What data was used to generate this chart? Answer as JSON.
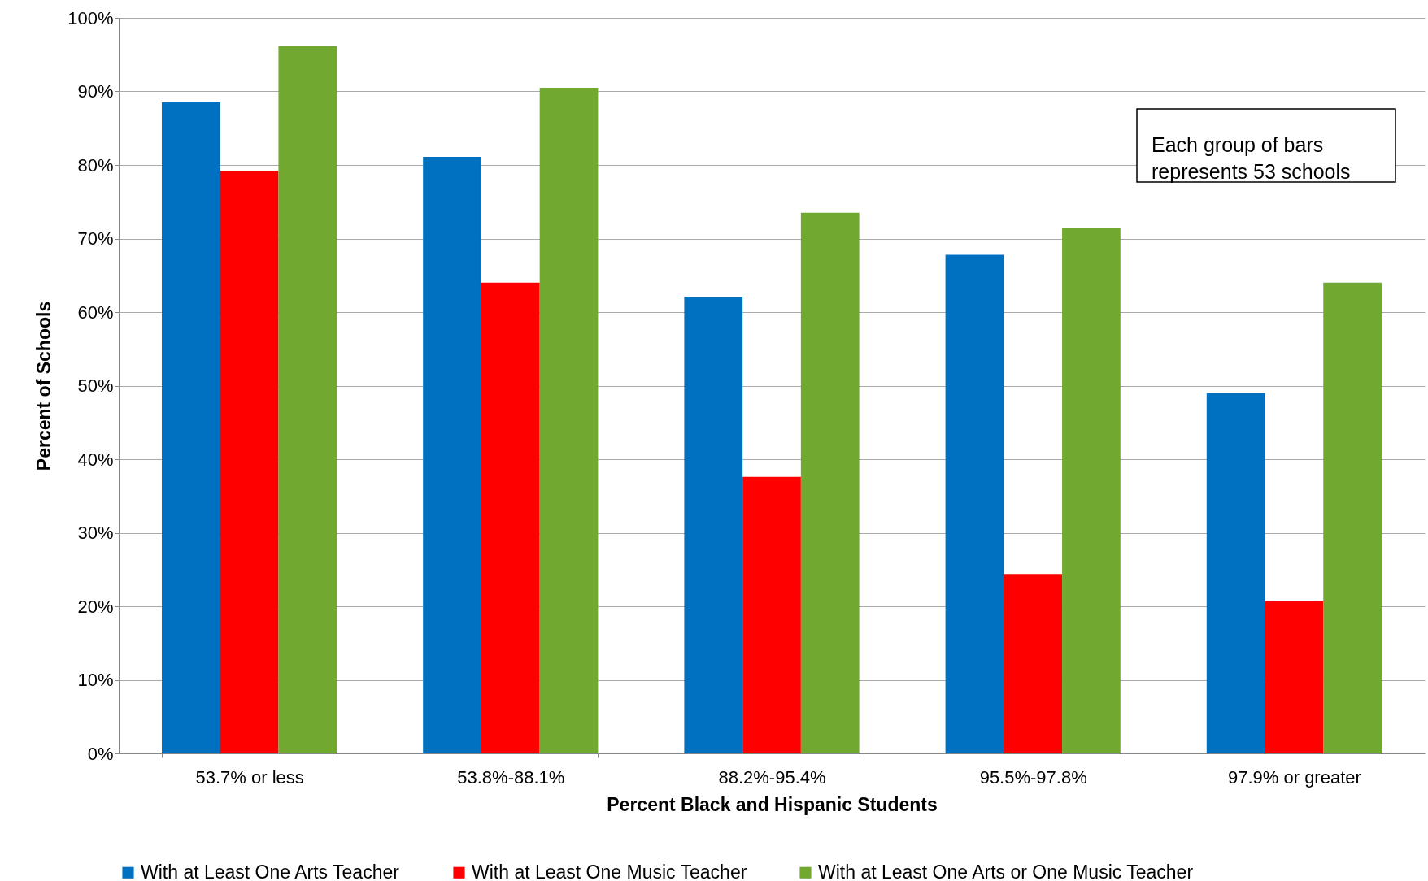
{
  "chart_data": {
    "type": "bar",
    "xlabel": "Percent Black and Hispanic Students",
    "ylabel": "Percent of Schools",
    "categories": [
      "53.7% or less",
      "53.8%-88.1%",
      "88.2%-95.4%",
      "95.5%-97.8%",
      "97.9% or greater"
    ],
    "series": [
      {
        "name": "With at Least One Arts Teacher",
        "color": "#0070c0",
        "values": [
          88.5,
          81.1,
          62.1,
          67.8,
          49.0
        ]
      },
      {
        "name": "With at Least One Music Teacher",
        "color": "#ff0000",
        "values": [
          79.2,
          64.0,
          37.6,
          24.4,
          20.7
        ]
      },
      {
        "name": "With at Least One Arts or One Music Teacher",
        "color": "#70a830",
        "values": [
          96.2,
          90.5,
          73.5,
          71.5,
          64.0
        ]
      }
    ],
    "ylim": [
      0,
      100
    ],
    "yticks": [
      {
        "value": 0,
        "label": "0%"
      },
      {
        "value": 10,
        "label": "10%"
      },
      {
        "value": 20,
        "label": "20%"
      },
      {
        "value": 30,
        "label": "30%"
      },
      {
        "value": 40,
        "label": "40%"
      },
      {
        "value": 50,
        "label": "50%"
      },
      {
        "value": 60,
        "label": "60%"
      },
      {
        "value": 70,
        "label": "70%"
      },
      {
        "value": 80,
        "label": "80%"
      },
      {
        "value": 90,
        "label": "90%"
      },
      {
        "value": 100,
        "label": "100%"
      }
    ],
    "grid": "y",
    "legend": "bottom",
    "annotations": [
      "Each group of bars represents 53 schools"
    ]
  }
}
